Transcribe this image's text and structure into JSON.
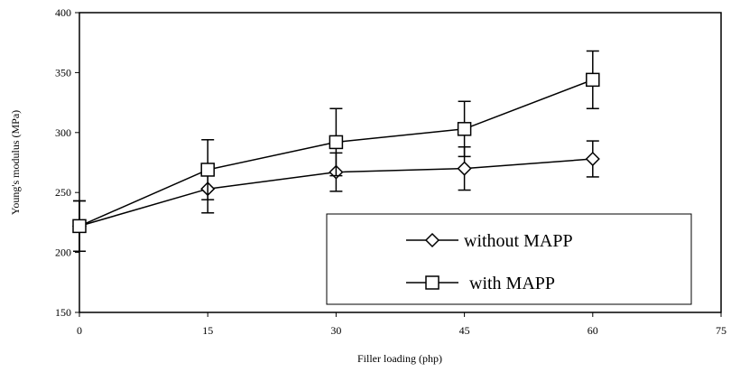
{
  "chart_data": {
    "type": "line",
    "title": "",
    "xlabel": "Filler loading (php)",
    "ylabel": "Young's modulus (MPa)",
    "xlim": [
      0,
      75
    ],
    "ylim": [
      150,
      400
    ],
    "xticks": [
      0,
      15,
      30,
      45,
      60,
      75
    ],
    "yticks": [
      150,
      200,
      250,
      300,
      350,
      400
    ],
    "grid": false,
    "legend_position": "bottom-right",
    "series": [
      {
        "name": "without MAPP",
        "marker": "diamond",
        "x": [
          0,
          15,
          30,
          45,
          60
        ],
        "values": [
          222,
          253,
          267,
          270,
          278
        ],
        "error": [
          21,
          20,
          16,
          18,
          15
        ]
      },
      {
        "name": "with MAPP",
        "marker": "square",
        "x": [
          0,
          15,
          30,
          45,
          60
        ],
        "values": [
          222,
          269,
          292,
          303,
          344
        ],
        "error": [
          21,
          25,
          28,
          23,
          24
        ]
      }
    ],
    "colors": {
      "line": "#000000",
      "marker_fill": "#ffffff",
      "background": "#ffffff"
    }
  }
}
